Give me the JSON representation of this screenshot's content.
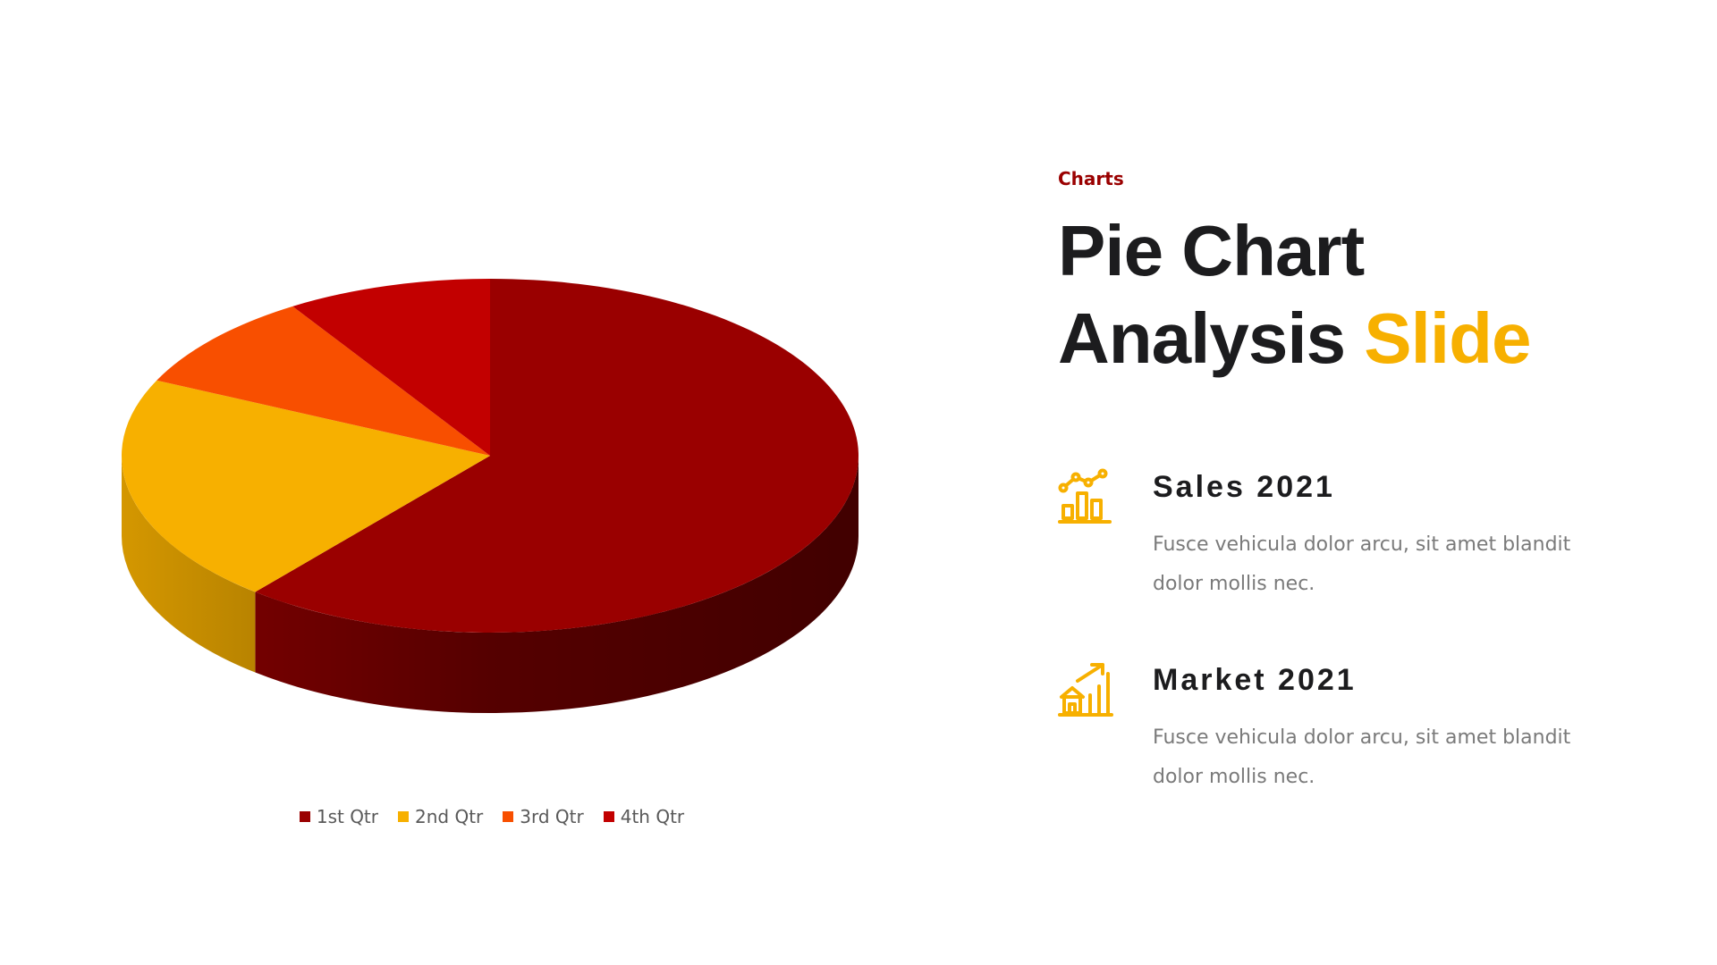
{
  "slide": {
    "kicker": "Charts",
    "title_line1": "Pie Chart",
    "title_line2_main": "Analysis ",
    "title_line2_accent": "Slide",
    "accent_color": "#f7b000",
    "kicker_color": "#9a0000"
  },
  "features": [
    {
      "heading": "Sales 2021",
      "description": "Fusce vehicula dolor arcu, sit amet blandit dolor mollis nec.",
      "icon": "bar-chart-trend-icon"
    },
    {
      "heading": "Market 2021",
      "description": "Fusce vehicula dolor arcu, sit amet blandit dolor mollis nec.",
      "icon": "house-growth-icon"
    }
  ],
  "chart_data": {
    "type": "pie",
    "style": "3d",
    "categories": [
      "1st Qtr",
      "2nd Qtr",
      "3rd Qtr",
      "4th Qtr"
    ],
    "values": [
      61,
      21,
      9,
      9
    ],
    "colors": [
      "#9a0000",
      "#f7b000",
      "#f84f00",
      "#c20000"
    ],
    "legend_position": "bottom"
  }
}
